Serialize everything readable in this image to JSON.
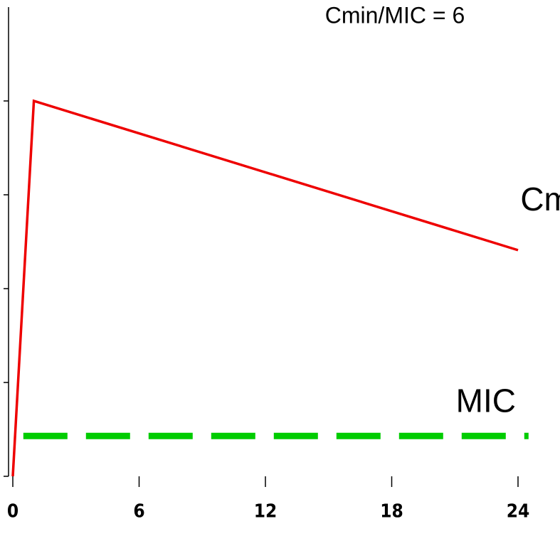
{
  "chart_data": {
    "type": "line",
    "title": "Cmin/MIC = 6",
    "series": [
      {
        "name": "Cmin",
        "color": "#ee0000",
        "dashed": false,
        "x": [
          0,
          1,
          24
        ],
        "values": [
          0,
          4,
          2.41
        ]
      },
      {
        "name": "MIC",
        "color": "#00cc00",
        "dashed": true,
        "x": [
          0.5,
          24.5
        ],
        "values": [
          0.43,
          0.43
        ]
      }
    ],
    "xlim": [
      0,
      24
    ],
    "xticks": [
      0,
      6,
      12,
      18,
      24
    ],
    "ylim": [
      0,
      5
    ],
    "yticks": [
      0,
      1,
      2,
      3,
      4
    ]
  }
}
